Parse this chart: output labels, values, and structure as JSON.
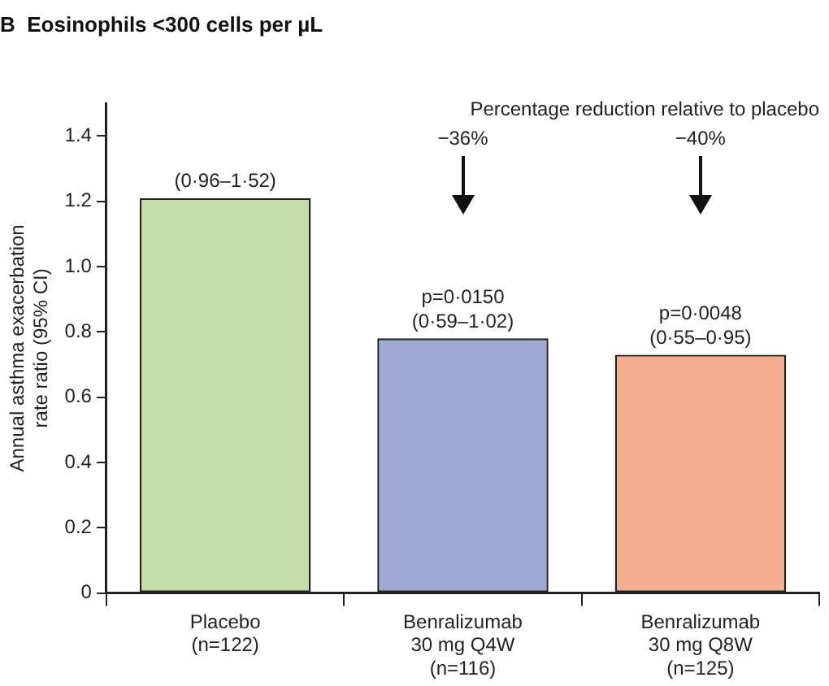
{
  "chart_data": {
    "type": "bar",
    "title": "B  Eosinophils <300 cells per µL",
    "categories": [
      "Placebo\n(n=122)",
      "Benralizumab\n30 mg Q4W\n(n=116)",
      "Benralizumab\n30 mg Q8W\n(n=125)"
    ],
    "values": [
      1.21,
      0.78,
      0.73
    ],
    "colors": [
      "#c5dea9",
      "#9eaad2",
      "#f4ae8f"
    ],
    "ylabel": "Annual asthma exacerbation\nrate ratio (95% CI)",
    "ylim": [
      0,
      1.5
    ],
    "yticks": [
      0,
      0.2,
      0.4,
      0.6,
      0.8,
      {
        "value": 1,
        "label": "1.0"
      },
      1.2,
      1.4
    ],
    "grid": false,
    "legend": false,
    "annotations": [
      {
        "text": "(0·96–1·52)",
        "x": "Placebo\n(n=122)",
        "y": 1.21
      },
      {
        "text": "p=0·0150\n(0·59–1·02)",
        "x": "Benralizumab\n30 mg Q4W\n(n=116)",
        "y": 0.78
      },
      {
        "text": "p=0·0048\n(0·55–0·95)",
        "x": "Benralizumab\n30 mg Q8W\n(n=125)",
        "y": 0.73
      },
      "Percentage reduction relative to placebo",
      "−36%",
      "−40%"
    ]
  }
}
